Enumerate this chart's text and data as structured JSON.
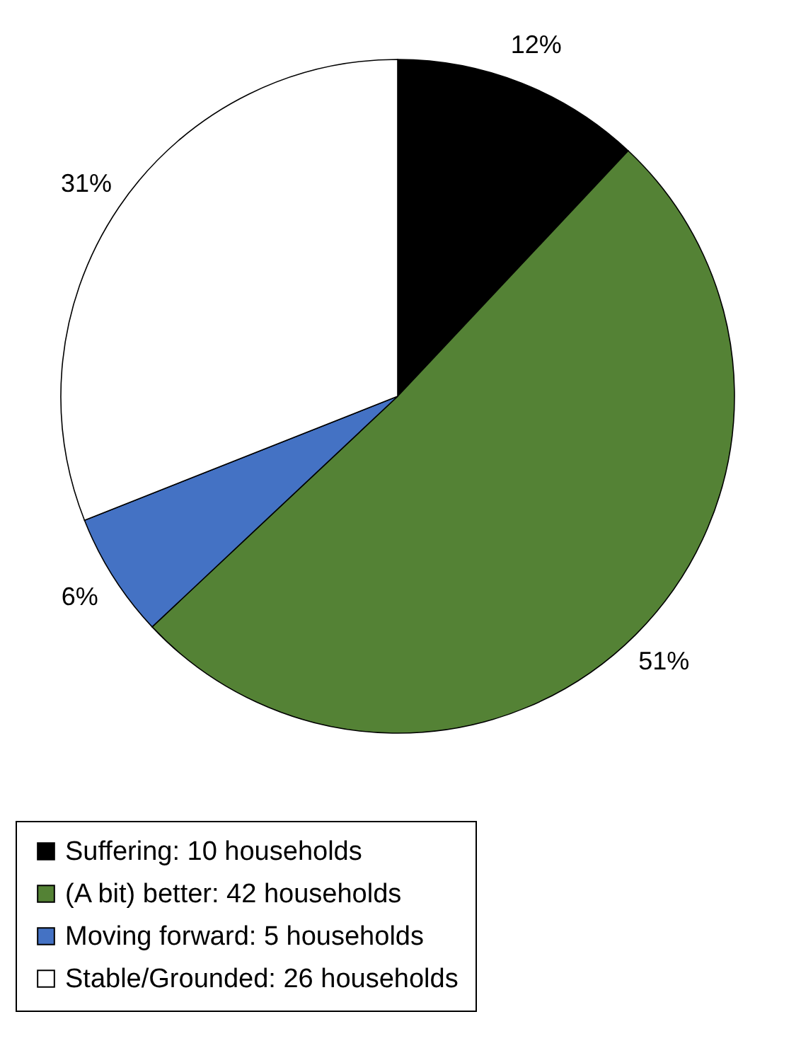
{
  "chart_data": {
    "type": "pie",
    "categories": [
      "Suffering: 10 households",
      "(A bit) better: 42 households",
      "Moving forward: 5 households",
      "Stable/Grounded: 26 households"
    ],
    "values": [
      12,
      51,
      6,
      31
    ],
    "colors": [
      "#000000",
      "#548235",
      "#4472c4",
      "#ffffff"
    ],
    "value_labels": [
      "12%",
      "51%",
      "6%",
      "31%"
    ],
    "legend": "bottom"
  }
}
